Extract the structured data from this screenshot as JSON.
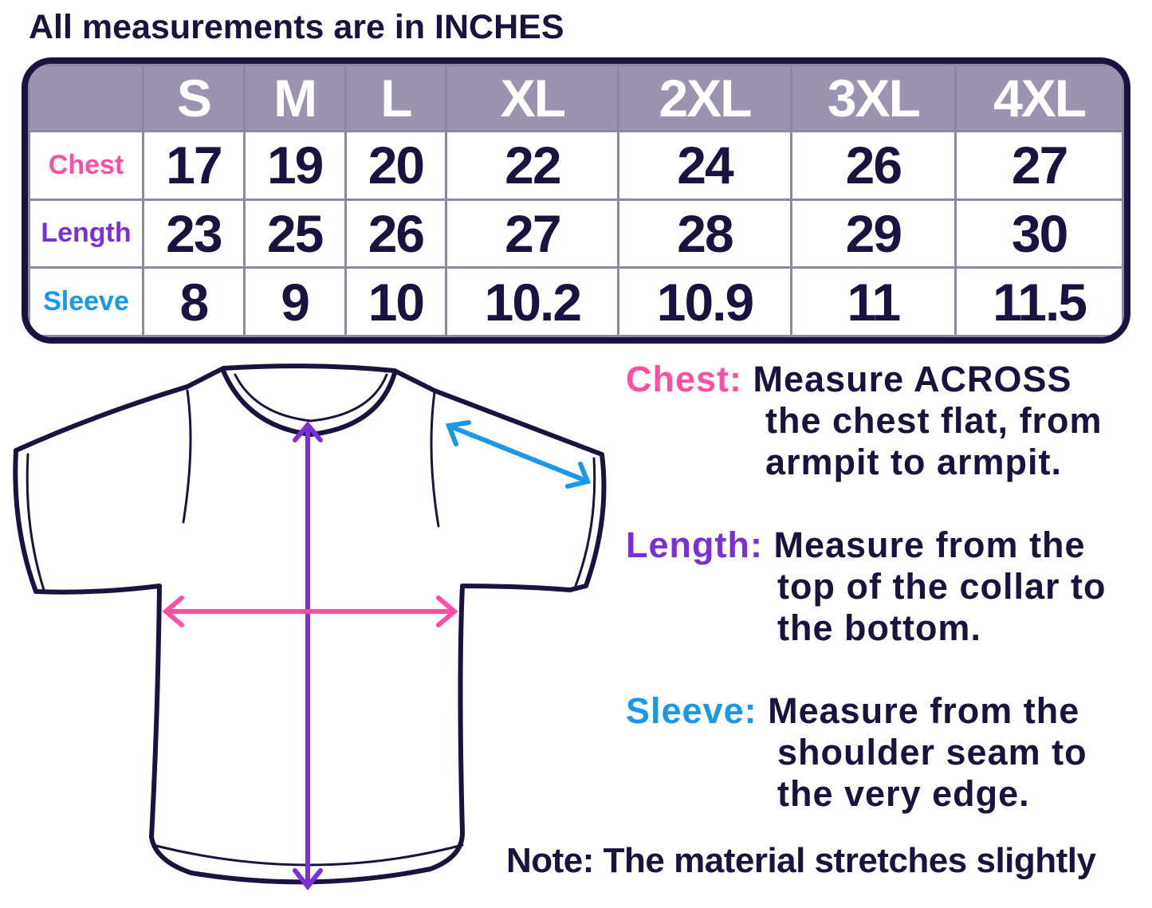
{
  "title": "All measurements are in INCHES",
  "sizes": [
    "S",
    "M",
    "L",
    "XL",
    "2XL",
    "3XL",
    "4XL"
  ],
  "rows": [
    {
      "label": "Chest",
      "color": "#ff4fa3",
      "values": [
        "17",
        "19",
        "20",
        "22",
        "24",
        "26",
        "27"
      ]
    },
    {
      "label": "Length",
      "color": "#7b2fd6",
      "values": [
        "23",
        "25",
        "26",
        "27",
        "28",
        "29",
        "30"
      ]
    },
    {
      "label": "Sleeve",
      "color": "#1898e8",
      "values": [
        "8",
        "9",
        "10",
        "10.2",
        "10.9",
        "11",
        "11.5"
      ]
    }
  ],
  "descriptions": [
    {
      "label": "Chest:",
      "lines": [
        "Measure ACROSS",
        "the chest flat, from",
        "armpit to armpit."
      ]
    },
    {
      "label": "Length:",
      "lines": [
        "Measure from the",
        "top of the collar to",
        "the bottom."
      ]
    },
    {
      "label": "Sleeve:",
      "lines": [
        "Measure from the",
        "shoulder seam to",
        "the very edge."
      ]
    }
  ],
  "note": "Note: The material stretches slightly",
  "colors": {
    "ink": "#1b1240",
    "header": "#9b93b0"
  }
}
